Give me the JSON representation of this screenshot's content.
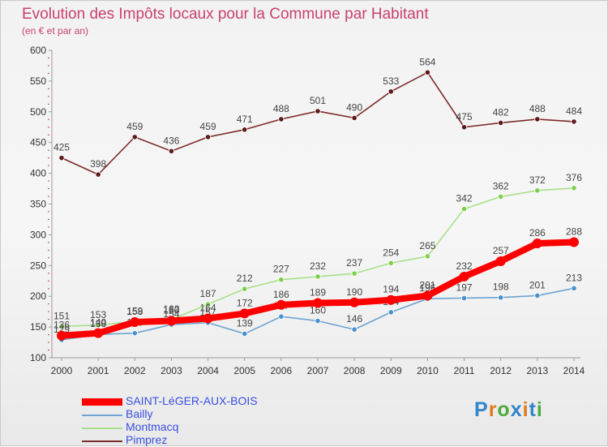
{
  "title": "Evolution des Impôts locaux pour la Commune par Habitant",
  "subtitle": "(en € et par an)",
  "logo_text": "Proxiti",
  "logo_colors": [
    "#2f86c9",
    "#e07a1b",
    "#4caa3c",
    "#2f86c9",
    "#e07a1b",
    "#2f86c9",
    "#4caa3c"
  ],
  "chart_data": {
    "type": "line",
    "x": [
      2000,
      2001,
      2002,
      2003,
      2004,
      2005,
      2006,
      2007,
      2008,
      2009,
      2010,
      2011,
      2012,
      2013,
      2014
    ],
    "ylim": [
      100,
      600
    ],
    "yticks": [
      100,
      150,
      200,
      250,
      300,
      350,
      400,
      450,
      500,
      550,
      600
    ],
    "grid": false,
    "legend_position": "bottom-left",
    "series": [
      {
        "name": "Pimprez",
        "color": "#7d2a2a",
        "marker": "#5e1a1a",
        "values": [
          425,
          398,
          459,
          436,
          459,
          471,
          488,
          501,
          490,
          533,
          564,
          475,
          482,
          488,
          484
        ]
      },
      {
        "name": "Montmacq",
        "color": "#a8e089",
        "marker": "#7bd04a",
        "values": [
          151,
          153,
          159,
          162,
          187,
          212,
          227,
          232,
          237,
          254,
          265,
          342,
          362,
          372,
          376
        ]
      },
      {
        "name": "Bailly",
        "color": "#6ea3d2",
        "marker": "#4a90d0",
        "values": [
          129,
          138,
          140,
          154,
          157,
          139,
          167,
          160,
          146,
          174,
          196,
          197,
          198,
          201,
          213
        ]
      },
      {
        "name": "SAINT-LéGER-AUX-BOIS",
        "color": "#ff0000",
        "marker": "#ff0000",
        "values": [
          136,
          140,
          158,
          160,
          164,
          172,
          186,
          189,
          190,
          194,
          201,
          232,
          257,
          286,
          288
        ]
      }
    ],
    "legend_order": [
      "SAINT-LéGER-AUX-BOIS",
      "Bailly",
      "Montmacq",
      "Pimprez"
    ]
  }
}
